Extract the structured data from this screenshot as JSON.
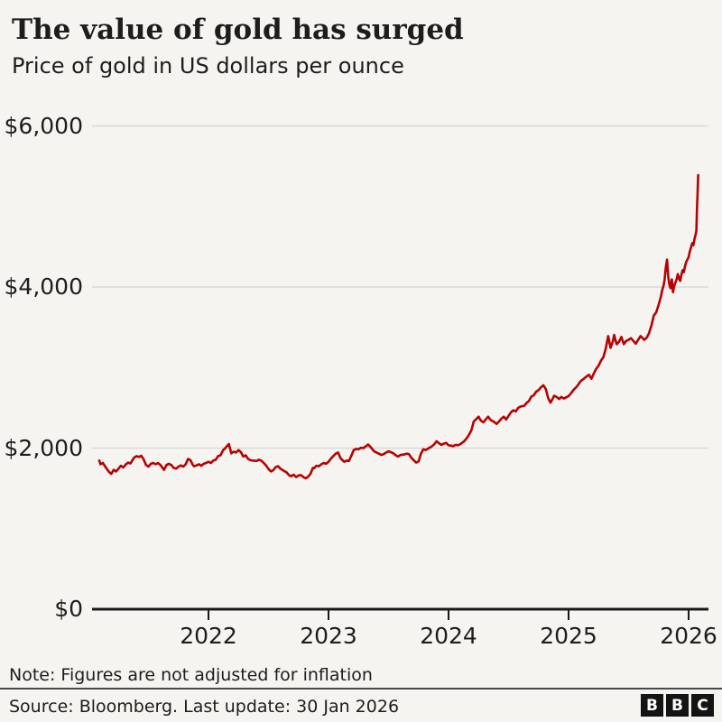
{
  "header": {
    "title": "The value of gold has surged",
    "subtitle": "Price of gold in US dollars per ounce"
  },
  "colors": {
    "background": "#f5f4f1",
    "line": "#b80000",
    "grid": "#d8d8d6",
    "axis": "#1a1a1a",
    "text": "#1d1d1b"
  },
  "chart_data": {
    "type": "line",
    "title": "The value of gold has surged",
    "subtitle": "Price of gold in US dollars per ounce",
    "ylabel": "US dollars per ounce",
    "xlabel": "",
    "grid": "horizontal",
    "legend": "none",
    "xlim": [
      2021.03,
      2026.17
    ],
    "ylim": [
      0,
      6000
    ],
    "y_ticks": [
      {
        "value": 6000,
        "label": "$6,000"
      },
      {
        "value": 4000,
        "label": "$4,000"
      },
      {
        "value": 2000,
        "label": "$2,000"
      },
      {
        "value": 0,
        "label": "$0"
      }
    ],
    "x_ticks": [
      {
        "value": 2022,
        "label": "2022"
      },
      {
        "value": 2023,
        "label": "2023"
      },
      {
        "value": 2024,
        "label": "2024"
      },
      {
        "value": 2025,
        "label": "2025"
      },
      {
        "value": 2026,
        "label": "2026"
      }
    ],
    "series": [
      {
        "name": "Gold price (US dollars per ounce)",
        "color": "#b80000",
        "points": [
          [
            2021.09,
            1845
          ],
          [
            2021.1,
            1800
          ],
          [
            2021.12,
            1815
          ],
          [
            2021.14,
            1770
          ],
          [
            2021.17,
            1705
          ],
          [
            2021.19,
            1680
          ],
          [
            2021.21,
            1730
          ],
          [
            2021.23,
            1710
          ],
          [
            2021.25,
            1745
          ],
          [
            2021.27,
            1780
          ],
          [
            2021.29,
            1760
          ],
          [
            2021.31,
            1795
          ],
          [
            2021.33,
            1820
          ],
          [
            2021.35,
            1810
          ],
          [
            2021.38,
            1880
          ],
          [
            2021.4,
            1900
          ],
          [
            2021.42,
            1890
          ],
          [
            2021.44,
            1905
          ],
          [
            2021.46,
            1860
          ],
          [
            2021.48,
            1790
          ],
          [
            2021.5,
            1770
          ],
          [
            2021.52,
            1805
          ],
          [
            2021.54,
            1815
          ],
          [
            2021.56,
            1800
          ],
          [
            2021.58,
            1815
          ],
          [
            2021.6,
            1790
          ],
          [
            2021.63,
            1730
          ],
          [
            2021.65,
            1790
          ],
          [
            2021.67,
            1805
          ],
          [
            2021.69,
            1790
          ],
          [
            2021.71,
            1755
          ],
          [
            2021.73,
            1745
          ],
          [
            2021.75,
            1770
          ],
          [
            2021.77,
            1785
          ],
          [
            2021.79,
            1770
          ],
          [
            2021.81,
            1800
          ],
          [
            2021.83,
            1865
          ],
          [
            2021.85,
            1850
          ],
          [
            2021.87,
            1790
          ],
          [
            2021.88,
            1775
          ],
          [
            2021.9,
            1785
          ],
          [
            2021.92,
            1800
          ],
          [
            2021.94,
            1780
          ],
          [
            2021.96,
            1805
          ],
          [
            2021.98,
            1815
          ],
          [
            2022.0,
            1830
          ],
          [
            2022.02,
            1815
          ],
          [
            2022.04,
            1845
          ],
          [
            2022.06,
            1855
          ],
          [
            2022.08,
            1900
          ],
          [
            2022.1,
            1910
          ],
          [
            2022.12,
            1970
          ],
          [
            2022.14,
            2000
          ],
          [
            2022.17,
            2050
          ],
          [
            2022.19,
            1935
          ],
          [
            2022.21,
            1955
          ],
          [
            2022.23,
            1945
          ],
          [
            2022.25,
            1975
          ],
          [
            2022.27,
            1950
          ],
          [
            2022.29,
            1895
          ],
          [
            2022.31,
            1910
          ],
          [
            2022.33,
            1865
          ],
          [
            2022.35,
            1850
          ],
          [
            2022.37,
            1845
          ],
          [
            2022.4,
            1840
          ],
          [
            2022.42,
            1855
          ],
          [
            2022.44,
            1845
          ],
          [
            2022.46,
            1815
          ],
          [
            2022.48,
            1785
          ],
          [
            2022.5,
            1740
          ],
          [
            2022.52,
            1710
          ],
          [
            2022.54,
            1725
          ],
          [
            2022.56,
            1765
          ],
          [
            2022.58,
            1775
          ],
          [
            2022.6,
            1745
          ],
          [
            2022.63,
            1715
          ],
          [
            2022.65,
            1700
          ],
          [
            2022.67,
            1665
          ],
          [
            2022.69,
            1650
          ],
          [
            2022.71,
            1670
          ],
          [
            2022.73,
            1640
          ],
          [
            2022.75,
            1660
          ],
          [
            2022.77,
            1665
          ],
          [
            2022.79,
            1640
          ],
          [
            2022.81,
            1625
          ],
          [
            2022.83,
            1645
          ],
          [
            2022.85,
            1680
          ],
          [
            2022.87,
            1755
          ],
          [
            2022.88,
            1750
          ],
          [
            2022.9,
            1780
          ],
          [
            2022.92,
            1775
          ],
          [
            2022.94,
            1800
          ],
          [
            2022.96,
            1815
          ],
          [
            2022.98,
            1805
          ],
          [
            2023.0,
            1830
          ],
          [
            2023.02,
            1870
          ],
          [
            2023.04,
            1900
          ],
          [
            2023.06,
            1930
          ],
          [
            2023.08,
            1945
          ],
          [
            2023.1,
            1875
          ],
          [
            2023.13,
            1830
          ],
          [
            2023.15,
            1845
          ],
          [
            2023.17,
            1840
          ],
          [
            2023.19,
            1905
          ],
          [
            2023.21,
            1975
          ],
          [
            2023.23,
            1990
          ],
          [
            2023.25,
            1985
          ],
          [
            2023.27,
            2005
          ],
          [
            2023.29,
            2000
          ],
          [
            2023.31,
            2020
          ],
          [
            2023.33,
            2045
          ],
          [
            2023.35,
            2015
          ],
          [
            2023.38,
            1960
          ],
          [
            2023.4,
            1945
          ],
          [
            2023.42,
            1930
          ],
          [
            2023.44,
            1915
          ],
          [
            2023.46,
            1925
          ],
          [
            2023.48,
            1945
          ],
          [
            2023.5,
            1960
          ],
          [
            2023.52,
            1950
          ],
          [
            2023.54,
            1935
          ],
          [
            2023.56,
            1910
          ],
          [
            2023.58,
            1895
          ],
          [
            2023.6,
            1915
          ],
          [
            2023.63,
            1920
          ],
          [
            2023.65,
            1930
          ],
          [
            2023.67,
            1925
          ],
          [
            2023.69,
            1880
          ],
          [
            2023.71,
            1850
          ],
          [
            2023.73,
            1820
          ],
          [
            2023.75,
            1835
          ],
          [
            2023.77,
            1930
          ],
          [
            2023.79,
            1985
          ],
          [
            2023.81,
            1975
          ],
          [
            2023.83,
            1995
          ],
          [
            2023.85,
            2010
          ],
          [
            2023.88,
            2045
          ],
          [
            2023.9,
            2085
          ],
          [
            2023.92,
            2060
          ],
          [
            2023.94,
            2040
          ],
          [
            2023.96,
            2055
          ],
          [
            2023.98,
            2065
          ],
          [
            2024.0,
            2035
          ],
          [
            2024.02,
            2030
          ],
          [
            2024.04,
            2025
          ],
          [
            2024.06,
            2040
          ],
          [
            2024.08,
            2035
          ],
          [
            2024.1,
            2050
          ],
          [
            2024.13,
            2085
          ],
          [
            2024.15,
            2120
          ],
          [
            2024.17,
            2165
          ],
          [
            2024.19,
            2220
          ],
          [
            2024.21,
            2330
          ],
          [
            2024.23,
            2360
          ],
          [
            2024.25,
            2390
          ],
          [
            2024.27,
            2340
          ],
          [
            2024.29,
            2320
          ],
          [
            2024.31,
            2355
          ],
          [
            2024.33,
            2390
          ],
          [
            2024.35,
            2350
          ],
          [
            2024.38,
            2325
          ],
          [
            2024.4,
            2300
          ],
          [
            2024.42,
            2330
          ],
          [
            2024.44,
            2365
          ],
          [
            2024.46,
            2390
          ],
          [
            2024.48,
            2355
          ],
          [
            2024.5,
            2400
          ],
          [
            2024.52,
            2445
          ],
          [
            2024.54,
            2470
          ],
          [
            2024.56,
            2455
          ],
          [
            2024.58,
            2500
          ],
          [
            2024.6,
            2515
          ],
          [
            2024.63,
            2525
          ],
          [
            2024.65,
            2560
          ],
          [
            2024.67,
            2585
          ],
          [
            2024.69,
            2640
          ],
          [
            2024.71,
            2655
          ],
          [
            2024.73,
            2700
          ],
          [
            2024.75,
            2720
          ],
          [
            2024.77,
            2755
          ],
          [
            2024.79,
            2780
          ],
          [
            2024.81,
            2735
          ],
          [
            2024.83,
            2620
          ],
          [
            2024.85,
            2565
          ],
          [
            2024.87,
            2620
          ],
          [
            2024.88,
            2650
          ],
          [
            2024.9,
            2635
          ],
          [
            2024.92,
            2610
          ],
          [
            2024.94,
            2635
          ],
          [
            2024.96,
            2615
          ],
          [
            2024.98,
            2630
          ],
          [
            2025.0,
            2645
          ],
          [
            2025.02,
            2680
          ],
          [
            2025.04,
            2720
          ],
          [
            2025.06,
            2750
          ],
          [
            2025.08,
            2785
          ],
          [
            2025.1,
            2830
          ],
          [
            2025.13,
            2865
          ],
          [
            2025.15,
            2890
          ],
          [
            2025.17,
            2910
          ],
          [
            2025.19,
            2860
          ],
          [
            2025.21,
            2925
          ],
          [
            2025.23,
            2985
          ],
          [
            2025.25,
            3025
          ],
          [
            2025.27,
            3085
          ],
          [
            2025.29,
            3130
          ],
          [
            2025.31,
            3235
          ],
          [
            2025.33,
            3390
          ],
          [
            2025.35,
            3245
          ],
          [
            2025.37,
            3330
          ],
          [
            2025.38,
            3405
          ],
          [
            2025.4,
            3290
          ],
          [
            2025.42,
            3320
          ],
          [
            2025.44,
            3380
          ],
          [
            2025.46,
            3290
          ],
          [
            2025.48,
            3330
          ],
          [
            2025.5,
            3345
          ],
          [
            2025.52,
            3365
          ],
          [
            2025.54,
            3330
          ],
          [
            2025.56,
            3295
          ],
          [
            2025.58,
            3345
          ],
          [
            2025.6,
            3390
          ],
          [
            2025.62,
            3360
          ],
          [
            2025.63,
            3345
          ],
          [
            2025.65,
            3370
          ],
          [
            2025.67,
            3425
          ],
          [
            2025.69,
            3520
          ],
          [
            2025.71,
            3645
          ],
          [
            2025.73,
            3685
          ],
          [
            2025.75,
            3780
          ],
          [
            2025.77,
            3885
          ],
          [
            2025.78,
            3960
          ],
          [
            2025.79,
            4010
          ],
          [
            2025.8,
            4090
          ],
          [
            2025.81,
            4240
          ],
          [
            2025.82,
            4340
          ],
          [
            2025.83,
            4130
          ],
          [
            2025.84,
            4030
          ],
          [
            2025.85,
            3985
          ],
          [
            2025.86,
            4095
          ],
          [
            2025.87,
            3935
          ],
          [
            2025.88,
            4010
          ],
          [
            2025.9,
            4095
          ],
          [
            2025.91,
            4160
          ],
          [
            2025.92,
            4100
          ],
          [
            2025.93,
            4075
          ],
          [
            2025.94,
            4150
          ],
          [
            2025.95,
            4210
          ],
          [
            2025.96,
            4185
          ],
          [
            2025.97,
            4255
          ],
          [
            2025.98,
            4310
          ],
          [
            2026.0,
            4370
          ],
          [
            2026.01,
            4440
          ],
          [
            2026.02,
            4490
          ],
          [
            2026.03,
            4545
          ],
          [
            2026.04,
            4520
          ],
          [
            2026.05,
            4600
          ],
          [
            2026.06,
            4660
          ],
          [
            2026.065,
            4700
          ],
          [
            2026.07,
            4980
          ],
          [
            2026.075,
            5180
          ],
          [
            2026.08,
            5390
          ]
        ]
      }
    ]
  },
  "footer": {
    "note": "Note: Figures are not adjusted for inflation",
    "source": "Source: Bloomberg. Last update: 30 Jan 2026",
    "logo": {
      "letters": [
        "B",
        "B",
        "C"
      ]
    }
  }
}
